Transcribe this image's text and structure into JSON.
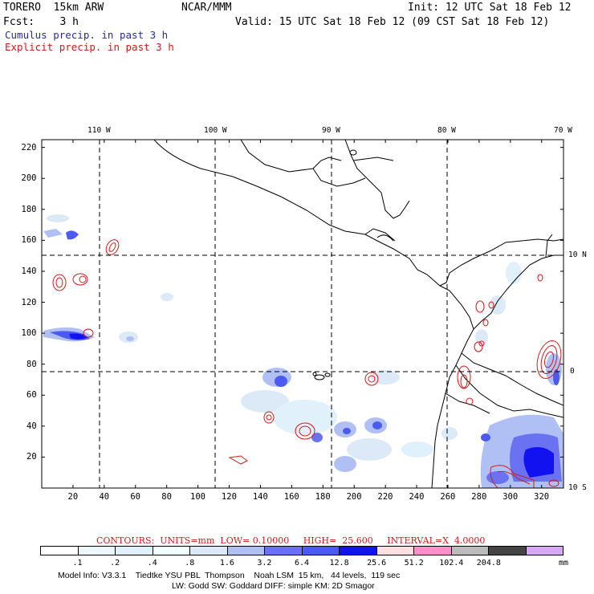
{
  "header": {
    "model": "TORERO  15km ARW",
    "org": "NCAR/MMM",
    "init": "Init: 12 UTC Sat 18 Feb 12",
    "fcst": "Fcst:    3 h",
    "valid": "Valid: 15 UTC Sat 18 Feb 12 (09 CST Sat 18 Feb 12)",
    "field1": "Cumulus precip. in past 3 h",
    "field2": "Explicit precip. in past 3 h"
  },
  "colors": {
    "cumulus_text": "#2a2aa8",
    "explicit_text": "#d81818",
    "explicit_contour": "#d81818",
    "coastline": "#000000"
  },
  "map": {
    "longitude_labels": [
      "110 W",
      "100 W",
      "90 W",
      "80 W",
      "70 W"
    ],
    "latitude_labels": [
      "10 N",
      "0",
      "10 S"
    ],
    "x_ticks": [
      "20",
      "40",
      "60",
      "80",
      "100",
      "120",
      "140",
      "160",
      "180",
      "200",
      "220",
      "240",
      "260",
      "280",
      "300",
      "320"
    ],
    "y_ticks": [
      "20",
      "40",
      "60",
      "80",
      "100",
      "120",
      "140",
      "160",
      "180",
      "200",
      "220"
    ],
    "x_range": [
      0,
      334
    ],
    "y_range": [
      0,
      225
    ]
  },
  "contour_info": {
    "label": "CONTOURS:  UNITS=mm  LOW= 0.10000     HIGH=  25.600     INTERVAL=X  4.0000"
  },
  "colorbar": {
    "colors": [
      "#ffffff",
      "#eef8ff",
      "#e0f1fb",
      "#f0fffe",
      "#dceaf8",
      "#b0c0f4",
      "#6a72f2",
      "#4b5af0",
      "#1212f0",
      "#ffe0e0",
      "#ff90c8",
      "#bbbbbb",
      "#444444",
      "#d8a8f8"
    ],
    "labels": [
      ".1",
      ".2",
      ".4",
      ".8",
      "1.6",
      "3.2",
      "6.4",
      "12.8",
      "25.6",
      "51.2",
      "102.4",
      "204.8"
    ],
    "unit": "mm"
  },
  "footer": {
    "line1": "Model Info: V3.3.1    Tiedtke YSU PBL  Thompson    Noah LSM  15 km,   44 levels,  119 sec",
    "line2": "LW: Godd SW: Goddard DIFF: simple KM: 2D Smagor"
  }
}
